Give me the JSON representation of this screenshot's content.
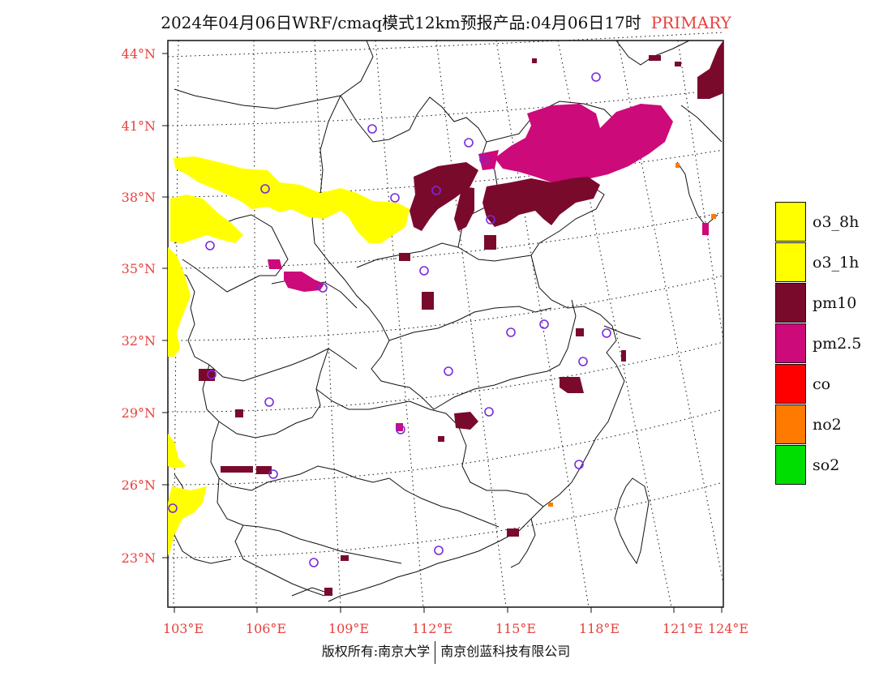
{
  "header": {
    "title": "2024年04月06日WRF/cmaq模式12km预报产品:04月06日17时",
    "tag": "PRIMARY"
  },
  "map": {
    "lat_labels": [
      "44°N",
      "41°N",
      "38°N",
      "35°N",
      "32°N",
      "29°N",
      "26°N",
      "23°N"
    ],
    "lon_labels": [
      "103°E",
      "106°E",
      "109°E",
      "112°E",
      "115°E",
      "118°E",
      "121°E",
      "124°E"
    ],
    "colors": {
      "o3": "#ffff00",
      "pm10": "#7a0a2c",
      "pm25": "#cc0a7a",
      "co": "#ff0000",
      "no2": "#ff7a00",
      "so2": "#00dd00",
      "station": "#7a2adc",
      "boundary": "#111111"
    }
  },
  "legend": {
    "items": [
      {
        "label": "o3_8h",
        "color": "#ffff00"
      },
      {
        "label": "o3_1h",
        "color": "#ffff00"
      },
      {
        "label": "pm10",
        "color": "#7a0a2c"
      },
      {
        "label": "pm2.5",
        "color": "#cc0a7a"
      },
      {
        "label": "co",
        "color": "#ff0000"
      },
      {
        "label": "no2",
        "color": "#ff7a00"
      },
      {
        "label": "so2",
        "color": "#00dd00"
      }
    ]
  },
  "footer": {
    "left": "版权所有:南京大学",
    "right": "南京创蓝科技有限公司"
  }
}
